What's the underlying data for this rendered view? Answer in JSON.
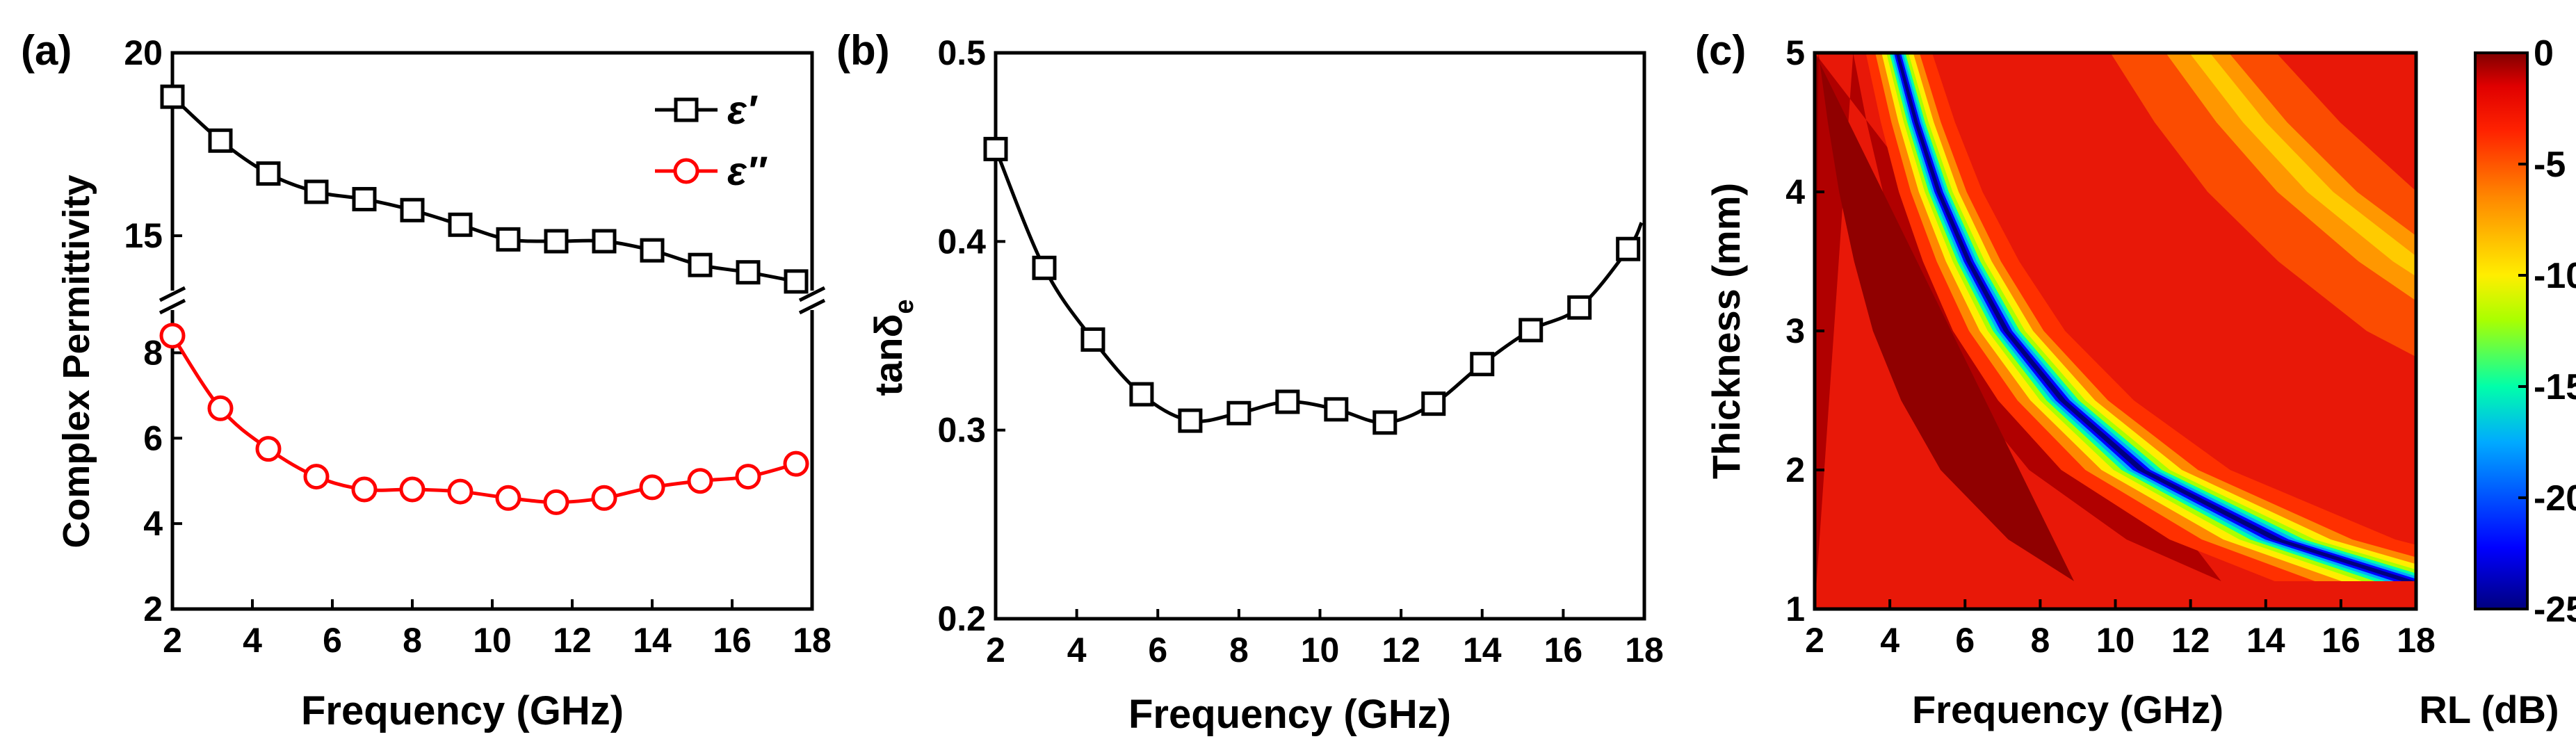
{
  "chart_data": [
    {
      "type": "line",
      "panel_label": "(a)",
      "xlabel": "Frequency (GHz)",
      "ylabel": "Complex Permittivity",
      "xlim": [
        2,
        18
      ],
      "xticks": [
        "2",
        "4",
        "6",
        "8",
        "10",
        "12",
        "14",
        "16",
        "18"
      ],
      "y_axis_broken": true,
      "upper_segment": {
        "ylim": [
          13.5,
          20
        ],
        "yticks": [
          "15",
          "20"
        ]
      },
      "lower_segment": {
        "ylim": [
          2,
          9
        ],
        "yticks": [
          "2",
          "4",
          "6",
          "8"
        ]
      },
      "legend_position": "top-right",
      "series": [
        {
          "name": "ε′",
          "segment": "upper",
          "marker": "square",
          "color": "#000000",
          "x": [
            2.0,
            3.2,
            4.4,
            5.6,
            6.8,
            8.0,
            9.2,
            10.4,
            11.6,
            12.8,
            14.0,
            15.2,
            16.4,
            17.6
          ],
          "y": [
            18.8,
            17.6,
            16.7,
            16.2,
            16.0,
            15.7,
            15.3,
            14.9,
            14.85,
            14.85,
            14.6,
            14.2,
            14.0,
            13.75
          ]
        },
        {
          "name": "ε″",
          "segment": "lower",
          "marker": "circle",
          "color": "#ff0000",
          "x": [
            2.0,
            3.2,
            4.4,
            5.6,
            6.8,
            8.0,
            9.2,
            10.4,
            11.6,
            12.8,
            14.0,
            15.2,
            16.4,
            17.6
          ],
          "y": [
            8.4,
            6.7,
            5.75,
            5.1,
            4.8,
            4.8,
            4.75,
            4.6,
            4.5,
            4.6,
            4.85,
            5.0,
            5.1,
            5.4
          ]
        }
      ]
    },
    {
      "type": "line",
      "panel_label": "(b)",
      "xlabel": "Frequency (GHz)",
      "ylabel_main": "tanδ",
      "ylabel_sub": "e",
      "xlim": [
        2,
        18
      ],
      "ylim": [
        0.2,
        0.5
      ],
      "xticks": [
        "2",
        "4",
        "6",
        "8",
        "10",
        "12",
        "14",
        "16",
        "18"
      ],
      "yticks": [
        "0.2",
        "0.3",
        "0.4",
        "0.5"
      ],
      "series": [
        {
          "marker": "square",
          "color": "#000000",
          "x": [
            2.0,
            3.2,
            4.4,
            5.6,
            6.8,
            8.0,
            9.2,
            10.4,
            11.6,
            12.8,
            14.0,
            15.2,
            16.4,
            17.6
          ],
          "y": [
            0.449,
            0.386,
            0.348,
            0.319,
            0.305,
            0.309,
            0.315,
            0.311,
            0.304,
            0.314,
            0.335,
            0.353,
            0.365,
            0.396
          ]
        }
      ]
    },
    {
      "type": "heatmap",
      "panel_label": "(c)",
      "xlabel": "Frequency (GHz)",
      "ylabel": "Thickness (mm)",
      "xlim": [
        2,
        18
      ],
      "ylim": [
        1,
        5
      ],
      "xticks": [
        "2",
        "4",
        "6",
        "8",
        "10",
        "12",
        "14",
        "16",
        "18"
      ],
      "yticks": [
        "1",
        "2",
        "3",
        "4",
        "5"
      ],
      "colorbar": {
        "label": "RL (dB)",
        "range": [
          -25,
          0
        ],
        "ticks": [
          "0",
          "-5",
          "-10",
          "-15",
          "-20",
          "-25"
        ],
        "colors": [
          "#00007f",
          "#0000ff",
          "#00aaff",
          "#00ffaa",
          "#aaff00",
          "#ffee00",
          "#ff8800",
          "#ff2200",
          "#e00000",
          "#800000"
        ]
      },
      "absorption_band": {
        "thickness_mm": [
          1.2,
          1.5,
          2.0,
          2.5,
          3.0,
          3.5,
          4.0,
          4.5,
          5.0
        ],
        "min_rl_frequency_ghz": [
          17.8,
          14.3,
          10.7,
          8.6,
          7.1,
          6.1,
          5.3,
          4.7,
          4.2
        ]
      }
    }
  ]
}
